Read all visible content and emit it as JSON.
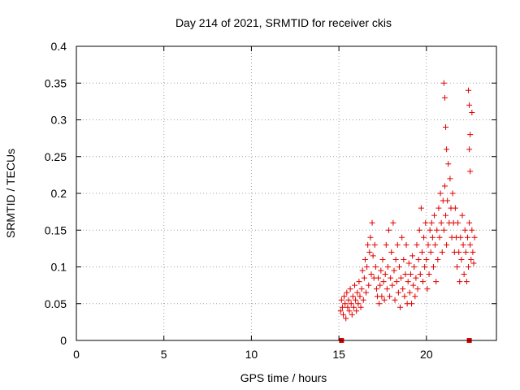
{
  "chart_data": {
    "type": "scatter",
    "title": "Day 214 of 2021, SRMTID for receiver ckis",
    "xlabel": "GPS time / hours",
    "ylabel": "SRMTID / TECUs",
    "xlim": [
      0,
      24
    ],
    "ylim": [
      0,
      0.4
    ],
    "xticks": [
      0,
      5,
      10,
      15,
      20
    ],
    "xtick_labels": [
      "0",
      "5",
      "10",
      "15",
      "20"
    ],
    "yticks": [
      0,
      0.05,
      0.1,
      0.15,
      0.2,
      0.25,
      0.3,
      0.35,
      0.4
    ],
    "ytick_labels": [
      "0",
      "0.05",
      "0.1",
      "0.15",
      "0.2",
      "0.25",
      "0.3",
      "0.35",
      "0.4"
    ],
    "grid": true,
    "marker": "plus",
    "color": "#e00000",
    "zero_markers": [
      [
        15.15,
        0
      ],
      [
        22.45,
        0
      ]
    ],
    "series": [
      {
        "name": "SRMTID",
        "points": [
          [
            15.1,
            0.04
          ],
          [
            15.15,
            0.055
          ],
          [
            15.2,
            0.045
          ],
          [
            15.25,
            0.035
          ],
          [
            15.3,
            0.06
          ],
          [
            15.35,
            0.05
          ],
          [
            15.4,
            0.03
          ],
          [
            15.45,
            0.065
          ],
          [
            15.5,
            0.045
          ],
          [
            15.55,
            0.055
          ],
          [
            15.6,
            0.04
          ],
          [
            15.65,
            0.07
          ],
          [
            15.7,
            0.05
          ],
          [
            15.75,
            0.035
          ],
          [
            15.8,
            0.06
          ],
          [
            15.85,
            0.045
          ],
          [
            15.9,
            0.075
          ],
          [
            15.95,
            0.055
          ],
          [
            16.0,
            0.04
          ],
          [
            16.05,
            0.065
          ],
          [
            16.1,
            0.05
          ],
          [
            16.15,
            0.08
          ],
          [
            16.2,
            0.06
          ],
          [
            16.25,
            0.045
          ],
          [
            16.3,
            0.07
          ],
          [
            16.35,
            0.095
          ],
          [
            16.4,
            0.055
          ],
          [
            16.45,
            0.085
          ],
          [
            16.5,
            0.11
          ],
          [
            16.55,
            0.065
          ],
          [
            16.6,
            0.1
          ],
          [
            16.65,
            0.13
          ],
          [
            16.7,
            0.075
          ],
          [
            16.75,
            0.12
          ],
          [
            16.8,
            0.14
          ],
          [
            16.85,
            0.09
          ],
          [
            16.9,
            0.16
          ],
          [
            16.95,
            0.115
          ],
          [
            17.0,
            0.085
          ],
          [
            17.05,
            0.13
          ],
          [
            17.1,
            0.1
          ],
          [
            17.15,
            0.07
          ],
          [
            17.2,
            0.06
          ],
          [
            17.25,
            0.085
          ],
          [
            17.3,
            0.05
          ],
          [
            17.35,
            0.075
          ],
          [
            17.4,
            0.095
          ],
          [
            17.45,
            0.06
          ],
          [
            17.5,
            0.11
          ],
          [
            17.55,
            0.08
          ],
          [
            17.6,
            0.055
          ],
          [
            17.65,
            0.09
          ],
          [
            17.7,
            0.13
          ],
          [
            17.75,
            0.07
          ],
          [
            17.8,
            0.1
          ],
          [
            17.85,
            0.15
          ],
          [
            17.9,
            0.06
          ],
          [
            17.95,
            0.085
          ],
          [
            18.0,
            0.12
          ],
          [
            18.05,
            0.075
          ],
          [
            18.1,
            0.16
          ],
          [
            18.15,
            0.095
          ],
          [
            18.2,
            0.055
          ],
          [
            18.25,
            0.11
          ],
          [
            18.3,
            0.08
          ],
          [
            18.35,
            0.13
          ],
          [
            18.4,
            0.065
          ],
          [
            18.45,
            0.1
          ],
          [
            18.5,
            0.045
          ],
          [
            18.55,
            0.085
          ],
          [
            18.6,
            0.14
          ],
          [
            18.65,
            0.07
          ],
          [
            18.7,
            0.11
          ],
          [
            18.75,
            0.06
          ],
          [
            18.8,
            0.09
          ],
          [
            18.85,
            0.13
          ],
          [
            18.9,
            0.05
          ],
          [
            18.95,
            0.08
          ],
          [
            19.0,
            0.105
          ],
          [
            19.05,
            0.065
          ],
          [
            19.1,
            0.09
          ],
          [
            19.15,
            0.05
          ],
          [
            19.2,
            0.115
          ],
          [
            19.25,
            0.075
          ],
          [
            19.3,
            0.1
          ],
          [
            19.35,
            0.06
          ],
          [
            19.4,
            0.085
          ],
          [
            19.45,
            0.13
          ],
          [
            19.5,
            0.07
          ],
          [
            19.55,
            0.11
          ],
          [
            19.6,
            0.15
          ],
          [
            19.65,
            0.09
          ],
          [
            19.7,
            0.18
          ],
          [
            19.75,
            0.12
          ],
          [
            19.8,
            0.08
          ],
          [
            19.85,
            0.14
          ],
          [
            19.9,
            0.1
          ],
          [
            19.95,
            0.16
          ],
          [
            20.0,
            0.11
          ],
          [
            20.05,
            0.07
          ],
          [
            20.1,
            0.13
          ],
          [
            20.15,
            0.09
          ],
          [
            20.2,
            0.15
          ],
          [
            20.25,
            0.12
          ],
          [
            20.3,
            0.16
          ],
          [
            20.35,
            0.14
          ],
          [
            20.4,
            0.1
          ],
          [
            20.45,
            0.17
          ],
          [
            20.5,
            0.13
          ],
          [
            20.55,
            0.08
          ],
          [
            20.6,
            0.15
          ],
          [
            20.65,
            0.11
          ],
          [
            20.7,
            0.18
          ],
          [
            20.75,
            0.14
          ],
          [
            20.8,
            0.2
          ],
          [
            20.85,
            0.16
          ],
          [
            20.9,
            0.12
          ],
          [
            20.95,
            0.19
          ],
          [
            21.0,
            0.15
          ],
          [
            21.05,
            0.21
          ],
          [
            21.1,
            0.17
          ],
          [
            21.15,
            0.13
          ],
          [
            21.2,
            0.19
          ],
          [
            21.25,
            0.24
          ],
          [
            21.3,
            0.16
          ],
          [
            21.35,
            0.22
          ],
          [
            21.4,
            0.18
          ],
          [
            21.45,
            0.14
          ],
          [
            21.5,
            0.2
          ],
          [
            21.55,
            0.16
          ],
          [
            21.6,
            0.12
          ],
          [
            21.65,
            0.18
          ],
          [
            21.7,
            0.14
          ],
          [
            21.75,
            0.1
          ],
          [
            21.8,
            0.16
          ],
          [
            21.85,
            0.12
          ],
          [
            21.9,
            0.08
          ],
          [
            21.95,
            0.14
          ],
          [
            22.0,
            0.11
          ],
          [
            22.05,
            0.17
          ],
          [
            22.1,
            0.13
          ],
          [
            22.15,
            0.09
          ],
          [
            22.2,
            0.15
          ],
          [
            22.25,
            0.12
          ],
          [
            22.3,
            0.08
          ],
          [
            22.35,
            0.14
          ],
          [
            22.4,
            0.1
          ],
          [
            22.45,
            0.16
          ],
          [
            22.5,
            0.13
          ],
          [
            22.55,
            0.11
          ],
          [
            22.6,
            0.15
          ],
          [
            22.65,
            0.12
          ],
          [
            22.7,
            0.105
          ],
          [
            22.75,
            0.14
          ],
          [
            21.0,
            0.35
          ],
          [
            21.05,
            0.33
          ],
          [
            21.1,
            0.29
          ],
          [
            21.15,
            0.26
          ],
          [
            22.4,
            0.34
          ],
          [
            22.45,
            0.32
          ],
          [
            22.5,
            0.28
          ],
          [
            22.45,
            0.26
          ],
          [
            22.5,
            0.23
          ],
          [
            22.6,
            0.31
          ]
        ]
      }
    ]
  }
}
